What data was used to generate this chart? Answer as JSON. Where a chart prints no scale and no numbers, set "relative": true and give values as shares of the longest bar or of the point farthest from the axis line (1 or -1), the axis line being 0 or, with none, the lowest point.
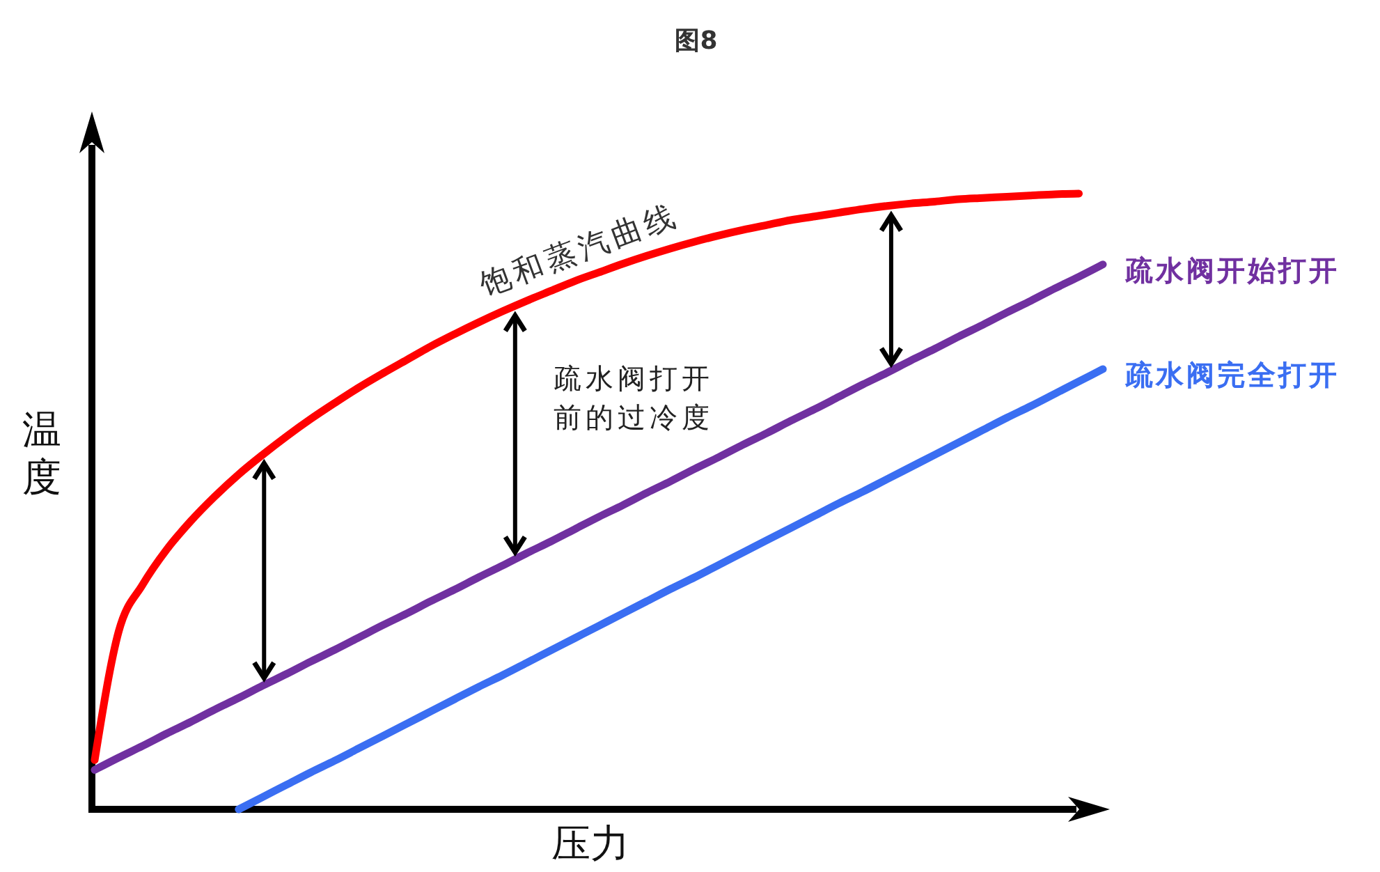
{
  "chart_data": {
    "type": "line",
    "title": "图8",
    "xlabel": "压力",
    "ylabel": "温度",
    "relative": true,
    "categories": [
      null,
      null,
      null,
      null,
      null,
      null,
      null,
      null,
      null,
      null,
      null,
      null,
      null,
      null,
      null,
      null,
      null,
      null,
      null,
      null,
      null,
      null,
      null,
      null,
      null,
      null,
      null,
      null,
      null,
      null,
      null,
      null,
      null,
      null,
      null,
      null,
      null,
      null,
      null,
      null,
      null,
      null,
      null
    ],
    "series": [
      {
        "name": "饱和蒸汽曲线",
        "color": "#ff0000",
        "values": [
          0.08,
          0.289,
          0.365,
          0.422,
          0.468,
          0.508,
          0.544,
          0.576,
          0.606,
          0.634,
          0.66,
          0.685,
          0.708,
          0.73,
          0.752,
          0.772,
          0.791,
          0.809,
          0.826,
          0.842,
          0.858,
          0.872,
          0.886,
          0.899,
          0.911,
          0.922,
          0.932,
          0.941,
          0.949,
          0.957,
          0.963,
          0.969,
          0.975,
          0.98,
          0.984,
          0.987,
          0.991,
          0.993,
          0.995,
          0.997,
          0.999,
          1.0,
          null
        ]
      },
      {
        "name": "疏水阀开始打开",
        "color": "#7030a0",
        "values": [
          0.064,
          0.084,
          0.103,
          0.123,
          0.142,
          0.162,
          0.181,
          0.201,
          0.22,
          0.24,
          0.259,
          0.279,
          0.299,
          0.318,
          0.338,
          0.357,
          0.377,
          0.396,
          0.416,
          0.435,
          0.455,
          0.475,
          0.494,
          0.514,
          0.533,
          0.553,
          0.572,
          0.592,
          0.611,
          0.631,
          0.65,
          0.67,
          0.69,
          0.709,
          0.729,
          0.748,
          0.768,
          0.787,
          0.807,
          0.826,
          0.846,
          0.865,
          0.885
        ]
      },
      {
        "name": "疏水阀完全打开",
        "color": "#3a6ef2",
        "values": [
          null,
          null,
          null,
          null,
          null,
          null,
          0.0,
          0.02,
          0.04,
          0.06,
          0.079,
          0.099,
          0.119,
          0.139,
          0.159,
          0.179,
          0.199,
          0.218,
          0.238,
          0.258,
          0.278,
          0.298,
          0.318,
          0.338,
          0.358,
          0.377,
          0.397,
          0.417,
          0.437,
          0.457,
          0.477,
          0.497,
          0.516,
          0.536,
          0.556,
          0.576,
          0.596,
          0.616,
          0.636,
          0.655,
          0.675,
          0.695,
          0.715
        ]
      }
    ],
    "annotations": [
      "疏水阀打开前的过冷度"
    ]
  }
}
